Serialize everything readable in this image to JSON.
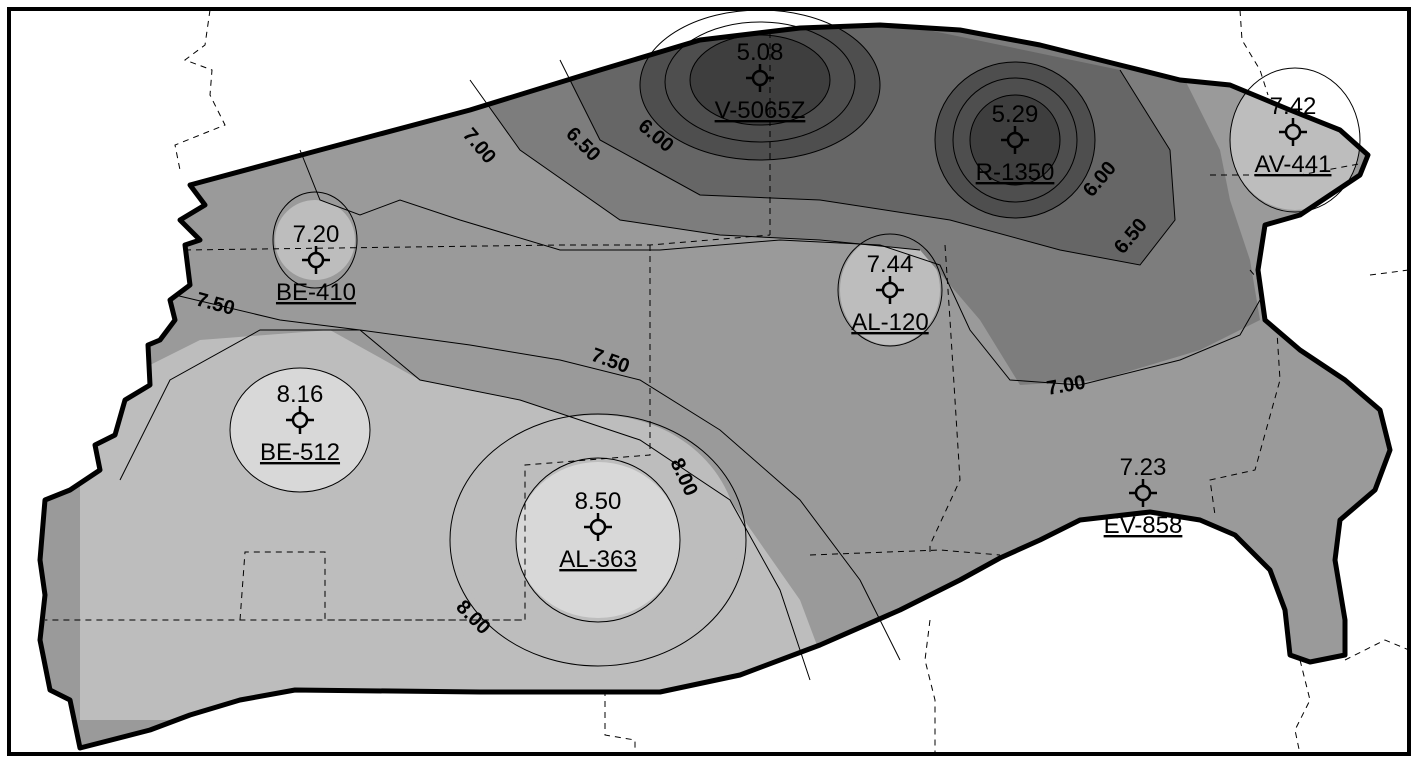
{
  "wells": [
    {
      "id": "V-5065Z",
      "value": "5.08"
    },
    {
      "id": "R-1350",
      "value": "5.29"
    },
    {
      "id": "AV-441",
      "value": "7.42"
    },
    {
      "id": "BE-410",
      "value": "7.20"
    },
    {
      "id": "AL-120",
      "value": "7.44"
    },
    {
      "id": "BE-512",
      "value": "8.16"
    },
    {
      "id": "AL-363",
      "value": "8.50"
    },
    {
      "id": "EV-858",
      "value": "7.23"
    }
  ],
  "contour_labels": [
    "7.00",
    "6.50",
    "6.00",
    "6.00",
    "6.50",
    "7.50",
    "7.50",
    "7.00",
    "8.00",
    "8.00"
  ],
  "colors": {
    "background": "#ffffff",
    "region_base": "#9a9a9a",
    "high_zone": "#bdbdbd",
    "highest_zone": "#d8d8d8",
    "low_zone_1": "#7d7d7d",
    "low_zone_2": "#666666",
    "low_zone_3": "#4e4e4e",
    "outline": "#000000"
  },
  "icons": {
    "well_marker": "well-symbol-icon"
  }
}
